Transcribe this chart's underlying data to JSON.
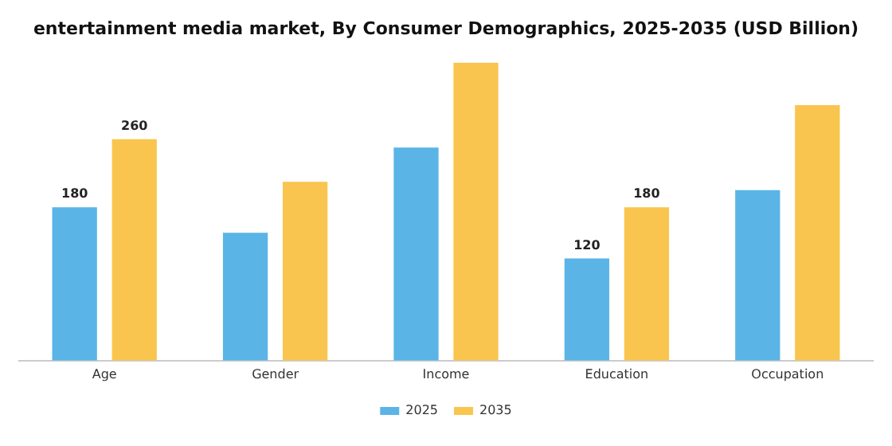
{
  "chart_data": {
    "type": "bar",
    "title": "entertainment media market, By Consumer Demographics, 2025-2035 (USD Billion)",
    "categories": [
      "Age",
      "Gender",
      "Income",
      "Education",
      "Occupation"
    ],
    "series": [
      {
        "name": "2025",
        "color": "#5ab4e6",
        "values": [
          180,
          150,
          250,
          120,
          200
        ],
        "value_labels": [
          "180",
          null,
          null,
          "120",
          null
        ]
      },
      {
        "name": "2035",
        "color": "#f9c54e",
        "values": [
          260,
          210,
          350,
          180,
          300
        ],
        "value_labels": [
          "260",
          null,
          null,
          "180",
          null
        ]
      }
    ],
    "grid": false,
    "legend": "bottom",
    "tick_labels": "x"
  }
}
